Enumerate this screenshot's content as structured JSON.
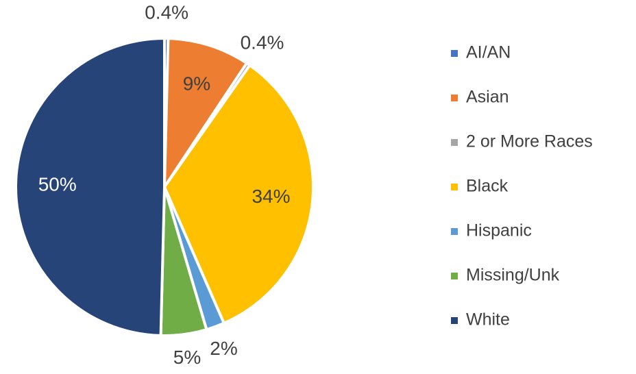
{
  "chart_data": {
    "type": "pie",
    "categories": [
      "AI/AN",
      "Asian",
      "2 or More Races",
      "Black",
      "Hispanic",
      "Missing/Unk",
      "White"
    ],
    "values": [
      0.4,
      9,
      0.4,
      34,
      2,
      5,
      50
    ],
    "value_labels": [
      "0.4%",
      "9%",
      "0.4%",
      "34%",
      "2%",
      "5%",
      "50%"
    ],
    "colors": [
      "#4472c4",
      "#ed7d31",
      "#a5a5a5",
      "#ffc000",
      "#5b9bd5",
      "#70ad47",
      "#264478"
    ],
    "legend": "right"
  }
}
